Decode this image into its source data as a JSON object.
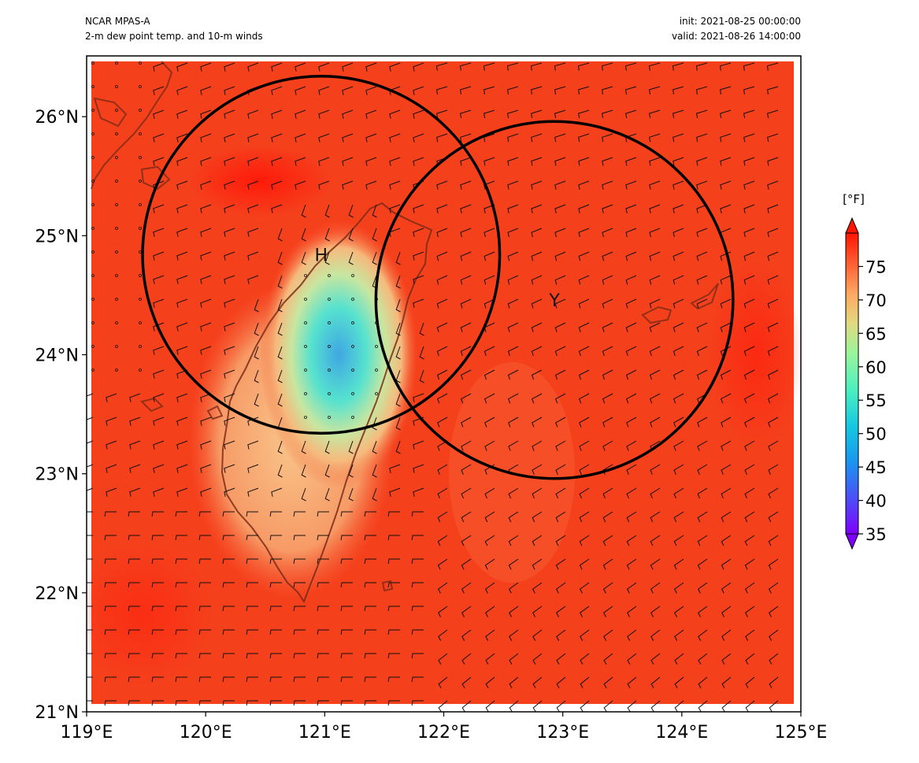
{
  "header": {
    "left_line1": "NCAR MPAS-A",
    "left_line2": "2-m dew point temp. and 10-m winds",
    "right_line1": "init: 2021-08-25 00:00:00",
    "right_line2": "valid: 2021-08-26 14:00:00"
  },
  "map": {
    "lon_range": [
      119,
      125
    ],
    "lat_range": [
      21,
      26.5
    ],
    "x_ticks": [
      "119°E",
      "120°E",
      "121°E",
      "122°E",
      "123°E",
      "124°E",
      "125°E"
    ],
    "y_ticks": [
      "21°N",
      "22°N",
      "23°N",
      "24°N",
      "25°N",
      "26°N"
    ],
    "field_color": "#f5401c",
    "coastline_color": "#7a2a18"
  },
  "circles": [
    {
      "label": "H",
      "lon": 120.97,
      "lat": 24.84
    },
    {
      "label": "Y",
      "lon": 122.93,
      "lat": 24.46
    }
  ],
  "colorbar": {
    "unit": "[°F]",
    "ticks": [
      "35",
      "40",
      "45",
      "50",
      "55",
      "60",
      "65",
      "70",
      "75"
    ],
    "range": [
      35,
      80
    ]
  }
}
